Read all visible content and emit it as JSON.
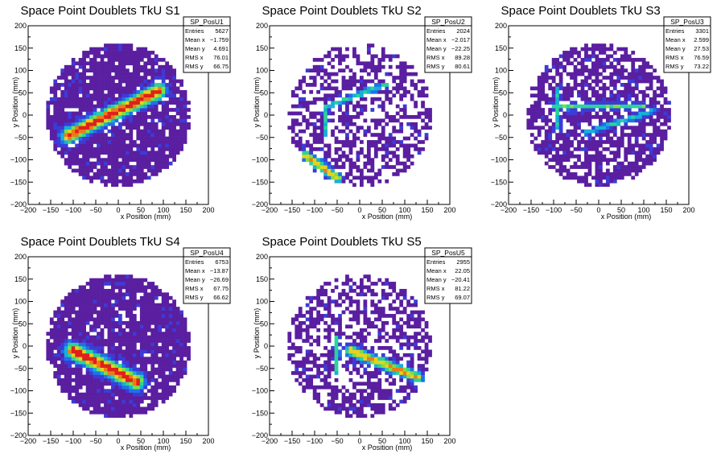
{
  "chart_data": [
    {
      "type": "heatmap",
      "title": "Space Point Doublets TkU S1",
      "xlabel": "x Position (mm)",
      "ylabel": "y Position (mm)",
      "xlim": [
        -200,
        200
      ],
      "ylim": [
        -200,
        200
      ],
      "xticks": [
        "−200",
        "−150",
        "−100",
        "−50",
        "0",
        "50",
        "100",
        "150",
        "200"
      ],
      "yticks": [
        "−200",
        "−150",
        "−100",
        "−50",
        "0",
        "50",
        "100",
        "150",
        "200"
      ],
      "detector_radius": 160,
      "grid": false,
      "stats": {
        "name": "SP_PosU1",
        "rows": [
          {
            "label": "Entries",
            "value": "5627"
          },
          {
            "label": "Mean x",
            "value": "−1.759"
          },
          {
            "label": "Mean y",
            "value": "4.691"
          },
          {
            "label": "RMS x",
            "value": "76.01"
          },
          {
            "label": "RMS y",
            "value": "66.75"
          }
        ]
      },
      "features": [
        {
          "kind": "band",
          "from": [
            -110,
            -45
          ],
          "to": [
            90,
            55
          ],
          "width": 22,
          "strength": 1.0
        }
      ],
      "fill_fraction": 0.85
    },
    {
      "type": "heatmap",
      "title": "Space Point Doublets TkU S2",
      "xlabel": "x Position (mm)",
      "ylabel": "y Position (mm)",
      "xlim": [
        -200,
        200
      ],
      "ylim": [
        -200,
        200
      ],
      "xticks": [
        "−200",
        "−150",
        "−100",
        "−50",
        "0",
        "50",
        "100",
        "150",
        "200"
      ],
      "yticks": [
        "−200",
        "−150",
        "−100",
        "−50",
        "0",
        "50",
        "100",
        "150",
        "200"
      ],
      "detector_radius": 160,
      "grid": false,
      "stats": {
        "name": "SP_PosU2",
        "rows": [
          {
            "label": "Entries",
            "value": "2024"
          },
          {
            "label": "Mean x",
            "value": "−2.017"
          },
          {
            "label": "Mean y",
            "value": "−22.25"
          },
          {
            "label": "RMS x",
            "value": "89.28"
          },
          {
            "label": "RMS y",
            "value": "80.61"
          }
        ]
      },
      "features": [
        {
          "kind": "band",
          "from": [
            -120,
            -90
          ],
          "to": [
            -50,
            -140
          ],
          "width": 14,
          "strength": 0.8
        },
        {
          "kind": "band",
          "from": [
            -70,
            20
          ],
          "to": [
            60,
            70
          ],
          "width": 10,
          "strength": 0.45
        },
        {
          "kind": "band",
          "from": [
            -75,
            -40
          ],
          "to": [
            -75,
            20
          ],
          "width": 8,
          "strength": 0.45
        }
      ],
      "fill_fraction": 0.5
    },
    {
      "type": "heatmap",
      "title": "Space Point Doublets TkU S3",
      "xlabel": "x Position (mm)",
      "ylabel": "y Position (mm)",
      "xlim": [
        -200,
        200
      ],
      "ylim": [
        -200,
        200
      ],
      "xticks": [
        "−200",
        "−150",
        "−100",
        "−50",
        "0",
        "50",
        "100",
        "150",
        "200"
      ],
      "yticks": [
        "−200",
        "−150",
        "−100",
        "−50",
        "0",
        "50",
        "100",
        "150",
        "200"
      ],
      "detector_radius": 160,
      "grid": false,
      "stats": {
        "name": "SP_PosU3",
        "rows": [
          {
            "label": "Entries",
            "value": "3301"
          },
          {
            "label": "Mean x",
            "value": "2.599"
          },
          {
            "label": "Mean y",
            "value": "27.53"
          },
          {
            "label": "RMS x",
            "value": "76.59"
          },
          {
            "label": "RMS y",
            "value": "73.22"
          }
        ]
      },
      "features": [
        {
          "kind": "band",
          "from": [
            -100,
            20
          ],
          "to": [
            100,
            20
          ],
          "width": 10,
          "strength": 0.5
        },
        {
          "kind": "band",
          "from": [
            -30,
            -40
          ],
          "to": [
            120,
            10
          ],
          "width": 10,
          "strength": 0.45
        },
        {
          "kind": "band",
          "from": [
            -90,
            -30
          ],
          "to": [
            -90,
            60
          ],
          "width": 8,
          "strength": 0.45
        }
      ],
      "fill_fraction": 0.7
    },
    {
      "type": "heatmap",
      "title": "Space Point Doublets TkU S4",
      "xlabel": "x Position (mm)",
      "ylabel": "y Position (mm)",
      "xlim": [
        -200,
        200
      ],
      "ylim": [
        -200,
        200
      ],
      "xticks": [
        "−200",
        "−150",
        "−100",
        "−50",
        "0",
        "50",
        "100",
        "150",
        "200"
      ],
      "yticks": [
        "−200",
        "−150",
        "−100",
        "−50",
        "0",
        "50",
        "100",
        "150",
        "200"
      ],
      "detector_radius": 160,
      "grid": false,
      "stats": {
        "name": "SP_PosU4",
        "rows": [
          {
            "label": "Entries",
            "value": "6753"
          },
          {
            "label": "Mean x",
            "value": "−13.87"
          },
          {
            "label": "Mean y",
            "value": "−26.69"
          },
          {
            "label": "RMS x",
            "value": "67.75"
          },
          {
            "label": "RMS y",
            "value": "66.62"
          }
        ]
      },
      "features": [
        {
          "kind": "band",
          "from": [
            -100,
            -10
          ],
          "to": [
            40,
            -80
          ],
          "width": 24,
          "strength": 1.0
        }
      ],
      "fill_fraction": 0.9
    },
    {
      "type": "heatmap",
      "title": "Space Point Doublets TkU S5",
      "xlabel": "x Position (mm)",
      "ylabel": "y Position (mm)",
      "xlim": [
        -200,
        200
      ],
      "ylim": [
        -200,
        200
      ],
      "xticks": [
        "−200",
        "−150",
        "−100",
        "−50",
        "0",
        "50",
        "100",
        "150",
        "200"
      ],
      "yticks": [
        "−200",
        "−150",
        "−100",
        "−50",
        "0",
        "50",
        "100",
        "150",
        "200"
      ],
      "detector_radius": 160,
      "grid": false,
      "stats": {
        "name": "SP_PosU5",
        "rows": [
          {
            "label": "Entries",
            "value": "2955"
          },
          {
            "label": "Mean x",
            "value": "22.05"
          },
          {
            "label": "Mean y",
            "value": "−20.41"
          },
          {
            "label": "RMS x",
            "value": "81.22"
          },
          {
            "label": "RMS y",
            "value": "69.07"
          }
        ]
      },
      "features": [
        {
          "kind": "band",
          "from": [
            -20,
            -10
          ],
          "to": [
            130,
            -70
          ],
          "width": 16,
          "strength": 0.8
        },
        {
          "kind": "band",
          "from": [
            -50,
            -60
          ],
          "to": [
            -50,
            20
          ],
          "width": 8,
          "strength": 0.5
        }
      ],
      "fill_fraction": 0.55
    }
  ],
  "palette": [
    "#5a1ea0",
    "#3d3bd6",
    "#1f72e8",
    "#17b0d8",
    "#2ad39a",
    "#7be047",
    "#e6d21c",
    "#f07a18",
    "#e0201a"
  ]
}
